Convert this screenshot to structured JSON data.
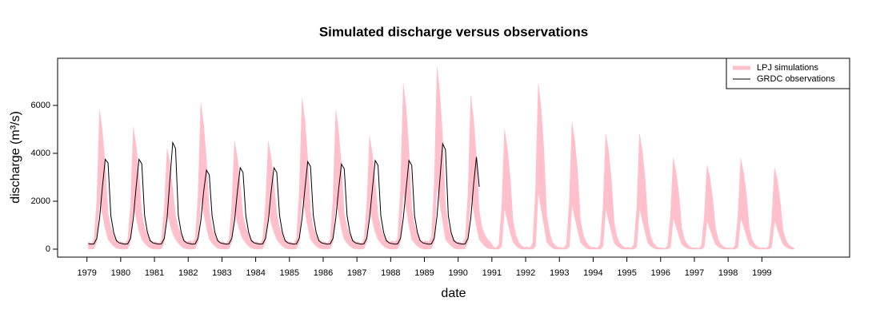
{
  "chart_data": {
    "type": "line",
    "title": "Simulated discharge versus observations",
    "xlabel": "date",
    "ylabel": "discharge (m³/s)",
    "xlim": [
      1978.13,
      2001.6
    ],
    "ylim": [
      -333,
      7967
    ],
    "xticks": [
      1979,
      1980,
      1981,
      1982,
      1983,
      1984,
      1985,
      1986,
      1987,
      1988,
      1989,
      1990,
      1991,
      1992,
      1993,
      1994,
      1995,
      1996,
      1997,
      1998,
      1999
    ],
    "yticks": [
      0,
      2000,
      4000,
      6000
    ],
    "legend": "top-right",
    "x": [
      1979.042,
      1979.125,
      1979.208,
      1979.292,
      1979.375,
      1979.458,
      1979.542,
      1979.625,
      1979.708,
      1979.792,
      1979.875,
      1979.958,
      1980.042,
      1980.125,
      1980.208,
      1980.292,
      1980.375,
      1980.458,
      1980.542,
      1980.625,
      1980.708,
      1980.792,
      1980.875,
      1980.958,
      1981.042,
      1981.125,
      1981.208,
      1981.292,
      1981.375,
      1981.458,
      1981.542,
      1981.625,
      1981.708,
      1981.792,
      1981.875,
      1981.958,
      1982.042,
      1982.125,
      1982.208,
      1982.292,
      1982.375,
      1982.458,
      1982.542,
      1982.625,
      1982.708,
      1982.792,
      1982.875,
      1982.958,
      1983.042,
      1983.125,
      1983.208,
      1983.292,
      1983.375,
      1983.458,
      1983.542,
      1983.625,
      1983.708,
      1983.792,
      1983.875,
      1983.958,
      1984.042,
      1984.125,
      1984.208,
      1984.292,
      1984.375,
      1984.458,
      1984.542,
      1984.625,
      1984.708,
      1984.792,
      1984.875,
      1984.958,
      1985.042,
      1985.125,
      1985.208,
      1985.292,
      1985.375,
      1985.458,
      1985.542,
      1985.625,
      1985.708,
      1985.792,
      1985.875,
      1985.958,
      1986.042,
      1986.125,
      1986.208,
      1986.292,
      1986.375,
      1986.458,
      1986.542,
      1986.625,
      1986.708,
      1986.792,
      1986.875,
      1986.958,
      1987.042,
      1987.125,
      1987.208,
      1987.292,
      1987.375,
      1987.458,
      1987.542,
      1987.625,
      1987.708,
      1987.792,
      1987.875,
      1987.958,
      1988.042,
      1988.125,
      1988.208,
      1988.292,
      1988.375,
      1988.458,
      1988.542,
      1988.625,
      1988.708,
      1988.792,
      1988.875,
      1988.958,
      1989.042,
      1989.125,
      1989.208,
      1989.292,
      1989.375,
      1989.458,
      1989.542,
      1989.625,
      1989.708,
      1989.792,
      1989.875,
      1989.958,
      1990.042,
      1990.125,
      1990.208,
      1990.292,
      1990.375,
      1990.458,
      1990.542,
      1990.625,
      1990.708,
      1990.792,
      1990.875,
      1990.958,
      1991.042,
      1991.125,
      1991.208,
      1991.292,
      1991.375,
      1991.458,
      1991.542,
      1991.625,
      1991.708,
      1991.792,
      1991.875,
      1991.958,
      1992.042,
      1992.125,
      1992.208,
      1992.292,
      1992.375,
      1992.458,
      1992.542,
      1992.625,
      1992.708,
      1992.792,
      1992.875,
      1992.958,
      1993.042,
      1993.125,
      1993.208,
      1993.292,
      1993.375,
      1993.458,
      1993.542,
      1993.625,
      1993.708,
      1993.792,
      1993.875,
      1993.958,
      1994.042,
      1994.125,
      1994.208,
      1994.292,
      1994.375,
      1994.458,
      1994.542,
      1994.625,
      1994.708,
      1994.792,
      1994.875,
      1994.958,
      1995.042,
      1995.125,
      1995.208,
      1995.292,
      1995.375,
      1995.458,
      1995.542,
      1995.625,
      1995.708,
      1995.792,
      1995.875,
      1995.958,
      1996.042,
      1996.125,
      1996.208,
      1996.292,
      1996.375,
      1996.458,
      1996.542,
      1996.625,
      1996.708,
      1996.792,
      1996.875,
      1996.958,
      1997.042,
      1997.125,
      1997.208,
      1997.292,
      1997.375,
      1997.458,
      1997.542,
      1997.625,
      1997.708,
      1997.792,
      1997.875,
      1997.958,
      1998.042,
      1998.125,
      1998.208,
      1998.292,
      1998.375,
      1998.458,
      1998.542,
      1998.625,
      1998.708,
      1998.792,
      1998.875,
      1998.958,
      1999.042,
      1999.125,
      1999.208,
      1999.292,
      1999.375,
      1999.458,
      1999.542,
      1999.625,
      1999.708,
      1999.792,
      1999.875,
      1999.958
    ],
    "series": [
      {
        "name": "LPJ simulations",
        "color": "#ffc0cb",
        "kind": "band",
        "upper": [
          300,
          250,
          400,
          2000,
          5800,
          4900,
          3500,
          1500,
          900,
          600,
          400,
          300,
          300,
          250,
          400,
          1800,
          5100,
          4300,
          3100,
          1500,
          900,
          600,
          400,
          300,
          300,
          250,
          400,
          1700,
          4200,
          3600,
          2500,
          1400,
          900,
          600,
          400,
          300,
          350,
          300,
          450,
          2200,
          6100,
          5200,
          3700,
          1600,
          900,
          600,
          400,
          300,
          300,
          250,
          400,
          1800,
          4500,
          3800,
          2700,
          1400,
          900,
          600,
          400,
          300,
          300,
          250,
          400,
          1900,
          4500,
          3800,
          2700,
          1500,
          900,
          600,
          400,
          300,
          300,
          250,
          450,
          2300,
          6300,
          5400,
          3800,
          1600,
          900,
          600,
          400,
          300,
          300,
          250,
          400,
          2100,
          5800,
          4900,
          3500,
          1500,
          900,
          600,
          400,
          300,
          300,
          250,
          400,
          1800,
          4700,
          4000,
          2800,
          1400,
          900,
          600,
          400,
          300,
          350,
          300,
          450,
          2500,
          6900,
          5900,
          4100,
          1700,
          1000,
          600,
          400,
          300,
          350,
          300,
          500,
          2700,
          7600,
          6500,
          4600,
          1800,
          1000,
          600,
          400,
          300,
          300,
          250,
          450,
          2300,
          6400,
          5400,
          3800,
          1600,
          900,
          600,
          400,
          300,
          100,
          50,
          200,
          1800,
          5000,
          4200,
          3000,
          1200,
          600,
          300,
          150,
          80,
          100,
          50,
          250,
          2400,
          6900,
          5900,
          4100,
          1400,
          700,
          300,
          150,
          80,
          80,
          40,
          200,
          1900,
          5300,
          4500,
          3200,
          1200,
          600,
          300,
          150,
          80,
          80,
          40,
          200,
          1700,
          4800,
          4100,
          2900,
          1100,
          500,
          250,
          120,
          60,
          80,
          40,
          200,
          1700,
          4800,
          4100,
          2900,
          1100,
          500,
          250,
          120,
          60,
          60,
          30,
          150,
          1400,
          3800,
          3200,
          2300,
          900,
          400,
          200,
          100,
          50,
          60,
          30,
          150,
          1300,
          3500,
          3000,
          2100,
          900,
          400,
          200,
          100,
          50,
          60,
          30,
          150,
          1400,
          3800,
          3200,
          2300,
          900,
          400,
          200,
          100,
          50,
          60,
          30,
          150,
          1200,
          3400,
          2900,
          2000,
          800,
          400,
          200,
          100,
          50
        ],
        "lower": [
          0,
          0,
          20,
          300,
          2000,
          1450,
          850,
          400,
          250,
          120,
          40,
          10,
          0,
          0,
          20,
          300,
          1800,
          1300,
          750,
          400,
          250,
          120,
          40,
          10,
          0,
          0,
          20,
          300,
          1500,
          1050,
          650,
          400,
          250,
          120,
          40,
          10,
          0,
          0,
          20,
          300,
          2100,
          1500,
          900,
          400,
          250,
          120,
          40,
          10,
          0,
          0,
          20,
          300,
          1600,
          1100,
          700,
          400,
          250,
          120,
          40,
          10,
          0,
          0,
          20,
          300,
          1600,
          1100,
          700,
          400,
          250,
          120,
          40,
          10,
          0,
          0,
          20,
          300,
          2200,
          1600,
          950,
          400,
          250,
          120,
          40,
          10,
          0,
          0,
          20,
          300,
          2000,
          1450,
          850,
          400,
          250,
          120,
          40,
          10,
          0,
          0,
          20,
          300,
          1650,
          1200,
          700,
          400,
          250,
          120,
          40,
          10,
          0,
          0,
          20,
          300,
          2400,
          1700,
          1000,
          400,
          250,
          120,
          40,
          10,
          0,
          0,
          20,
          300,
          2650,
          1900,
          1150,
          400,
          250,
          120,
          40,
          10,
          0,
          0,
          20,
          300,
          2250,
          1600,
          950,
          400,
          250,
          120,
          40,
          10,
          0,
          0,
          0,
          100,
          1700,
          1200,
          700,
          300,
          150,
          50,
          0,
          0,
          0,
          0,
          0,
          100,
          2400,
          1700,
          1000,
          300,
          150,
          50,
          0,
          0,
          0,
          0,
          0,
          100,
          1850,
          1300,
          800,
          300,
          150,
          50,
          0,
          0,
          0,
          0,
          0,
          100,
          1700,
          1200,
          700,
          250,
          120,
          40,
          0,
          0,
          0,
          0,
          0,
          100,
          1700,
          1200,
          700,
          250,
          120,
          40,
          0,
          0,
          0,
          0,
          0,
          80,
          1300,
          950,
          550,
          200,
          100,
          30,
          0,
          0,
          0,
          0,
          0,
          80,
          1200,
          850,
          500,
          200,
          100,
          30,
          0,
          0,
          0,
          0,
          0,
          80,
          1300,
          950,
          550,
          200,
          100,
          30,
          0,
          0,
          0,
          0,
          0,
          80,
          1200,
          850,
          500,
          200,
          100,
          30,
          0,
          0
        ]
      },
      {
        "name": "GRDC observations",
        "color": "#000000",
        "kind": "line",
        "values": [
          230,
          210,
          220,
          450,
          1300,
          2600,
          3750,
          3600,
          1400,
          700,
          350,
          260,
          230,
          210,
          220,
          450,
          1300,
          2600,
          3750,
          3560,
          1400,
          700,
          350,
          260,
          230,
          210,
          220,
          450,
          1300,
          2900,
          4450,
          4200,
          1400,
          700,
          350,
          260,
          230,
          210,
          220,
          450,
          1200,
          2400,
          3300,
          3100,
          1400,
          700,
          350,
          260,
          230,
          210,
          220,
          450,
          1200,
          2400,
          3400,
          3200,
          1400,
          700,
          350,
          260,
          230,
          210,
          220,
          450,
          1200,
          2400,
          3400,
          3200,
          1400,
          700,
          350,
          260,
          230,
          210,
          220,
          450,
          1300,
          2500,
          3650,
          3450,
          1400,
          700,
          350,
          260,
          230,
          210,
          220,
          450,
          1300,
          2500,
          3550,
          3350,
          1400,
          700,
          350,
          260,
          230,
          210,
          220,
          450,
          1300,
          2500,
          3700,
          3500,
          1400,
          700,
          350,
          260,
          230,
          210,
          220,
          450,
          1300,
          2500,
          3700,
          3500,
          1400,
          700,
          350,
          260,
          230,
          210,
          220,
          450,
          1400,
          2900,
          4400,
          4150,
          1400,
          700,
          350,
          260,
          230,
          210,
          220,
          450,
          1300,
          2700,
          3850,
          2600,
          null,
          null,
          null,
          null,
          null,
          null,
          null,
          null,
          null,
          null,
          null,
          null,
          null,
          null,
          null,
          null,
          null,
          null,
          null,
          null,
          null,
          null,
          null,
          null,
          null,
          null,
          null,
          null,
          null,
          null,
          null,
          null,
          null,
          null,
          null,
          null,
          null,
          null,
          null,
          null,
          null,
          null,
          null,
          null,
          null,
          null,
          null,
          null,
          null,
          null,
          null,
          null,
          null,
          null,
          null,
          null,
          null,
          null,
          null,
          null,
          null,
          null,
          null,
          null,
          null,
          null,
          null,
          null,
          null,
          null,
          null,
          null,
          null,
          null,
          null,
          null,
          null,
          null,
          null,
          null,
          null,
          null,
          null,
          null,
          null,
          null,
          null,
          null,
          null,
          null,
          null,
          null,
          null,
          null,
          null,
          null,
          null,
          null,
          null,
          null,
          null,
          null,
          null,
          null,
          null,
          null,
          null,
          null,
          null,
          null,
          null,
          null
        ]
      }
    ]
  }
}
